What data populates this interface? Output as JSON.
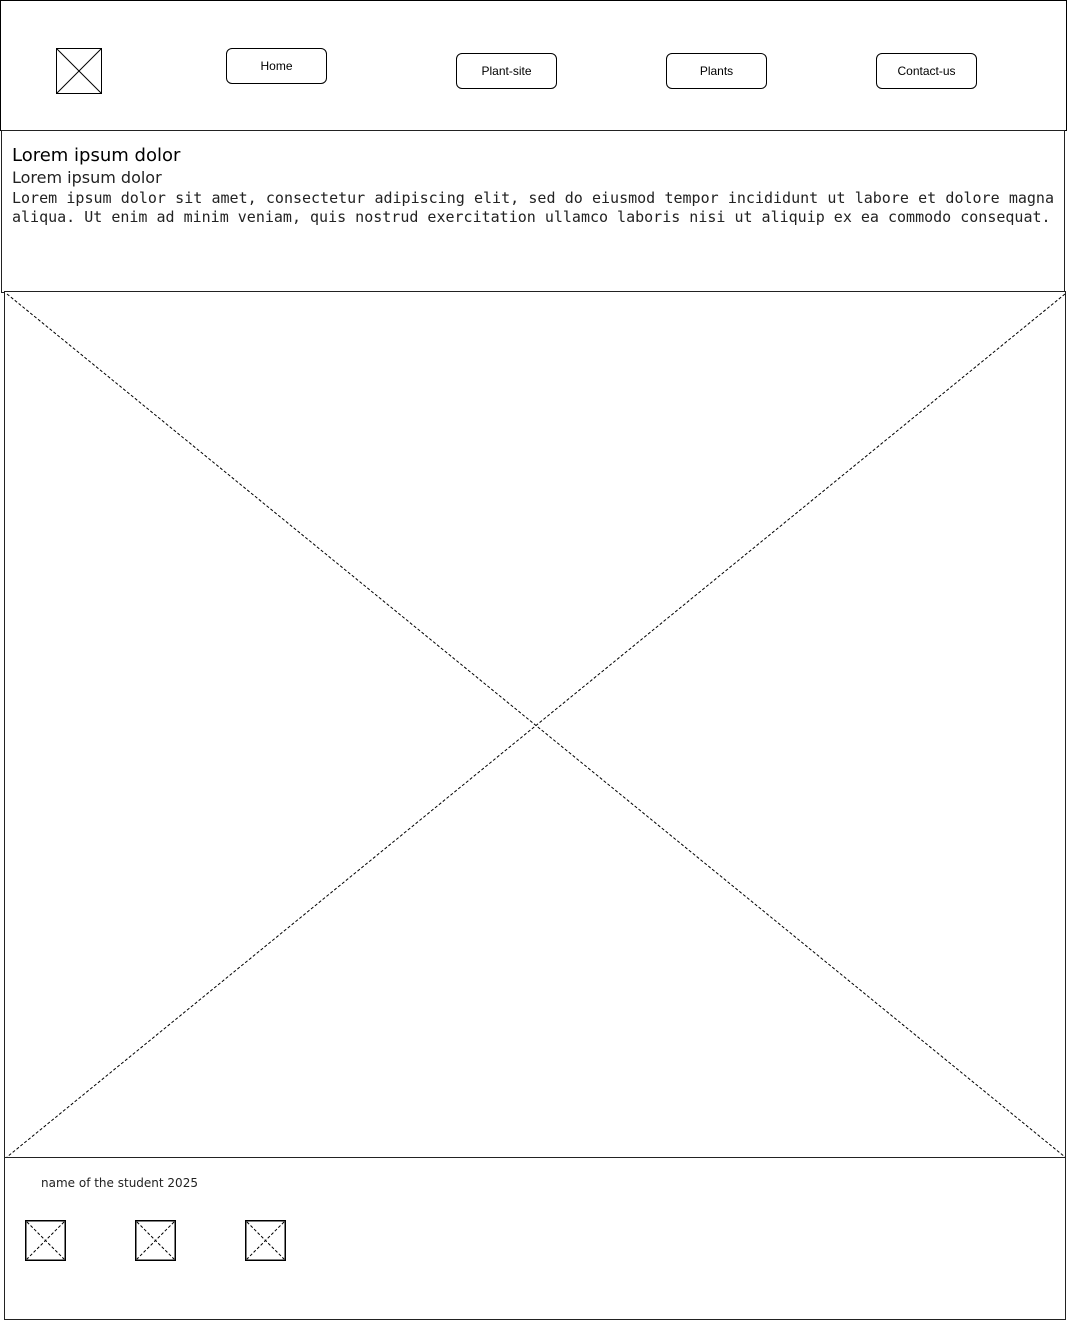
{
  "header": {
    "logo_icon": "image-placeholder-icon",
    "nav": {
      "home": "Home",
      "plant_site": "Plant-site",
      "plants": "Plants",
      "contact_us": "Contact-us"
    }
  },
  "intro": {
    "title": "Lorem ipsum dolor",
    "subtitle": "Lorem ipsum dolor",
    "body": "Lorem ipsum dolor sit amet, consectetur adipiscing elit, sed do eiusmod tempor incididunt ut labore et dolore magna aliqua. Ut enim ad minim veniam, quis nostrud exercitation ullamco laboris nisi ut aliquip ex ea commodo consequat."
  },
  "hero": {
    "icon": "image-placeholder-icon"
  },
  "footer": {
    "credit": "name of the student 2025",
    "social_icons": [
      "image-placeholder-icon",
      "image-placeholder-icon",
      "image-placeholder-icon"
    ]
  }
}
